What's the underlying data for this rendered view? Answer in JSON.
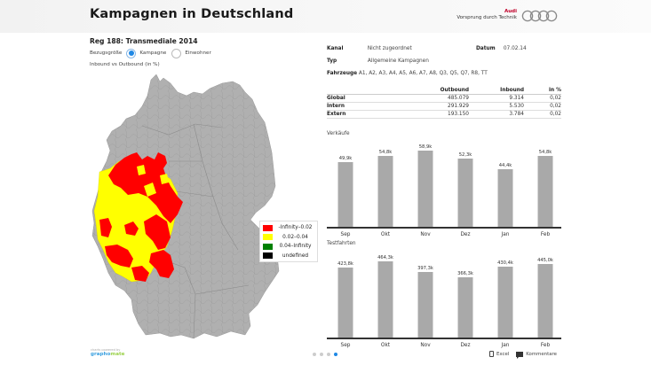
{
  "header": {
    "title": "Kampagnen in Deutschland",
    "brand_name": "Audi",
    "brand_slogan": "Vorsprung durch Technik",
    "logo_icon": "audi-rings-icon"
  },
  "left": {
    "subtitle": "Reg 188: Transmediale 2014",
    "bezug_label": "Bezugsgröße",
    "options": [
      {
        "label": "Kampagne",
        "checked": true
      },
      {
        "label": "Einwohner",
        "checked": false
      }
    ],
    "map_caption": "Inbound vs Outbound (in %)",
    "legend": [
      {
        "label": "-Infinity–0.02",
        "color": "#ff0000"
      },
      {
        "label": "0.02–0.04",
        "color": "#ffff00"
      },
      {
        "label": "0.04–Infinity",
        "color": "#008000"
      },
      {
        "label": "undefined",
        "color": "#000000"
      }
    ],
    "credit_line": "charts powered by",
    "credit_brand_a": "grapho",
    "credit_brand_b": "mate"
  },
  "info": {
    "kanal_label": "Kanal",
    "kanal_value": "Nicht zugeordnet",
    "datum_label": "Datum",
    "datum_value": "07.02.14",
    "typ_label": "Typ",
    "typ_value": "Allgemeine Kampagnen",
    "fahrzeuge_label": "Fahrzeuge",
    "fahrzeuge_value": "A1, A2, A3, A4, A5, A6, A7, A8, Q3, Q5, Q7, R8, TT"
  },
  "table": {
    "columns": [
      "",
      "Outbound",
      "Inbound",
      "in %"
    ],
    "rows": [
      [
        "Global",
        "485.079",
        "9.314",
        "0,02"
      ],
      [
        "Intern",
        "291.929",
        "5.530",
        "0,02"
      ],
      [
        "Extern",
        "193.150",
        "3.784",
        "0,02"
      ]
    ]
  },
  "chart_data": [
    {
      "type": "bar",
      "title": "Verkäufe",
      "categories": [
        "Sep",
        "Okt",
        "Nov",
        "Dez",
        "Jan",
        "Feb"
      ],
      "values": [
        49.9,
        54.8,
        58.9,
        52.3,
        44.4,
        54.8
      ],
      "labels": [
        "49,9k",
        "54,8k",
        "58,9k",
        "52,3k",
        "44,4k",
        "54,8k"
      ],
      "unit": "k",
      "xlabel": "",
      "ylabel": "",
      "grid": false,
      "legend": "none",
      "bar_color": "#a9a9a9"
    },
    {
      "type": "bar",
      "title": "Testfahrten",
      "categories": [
        "Sep",
        "Okt",
        "Nov",
        "Dez",
        "Jan",
        "Feb"
      ],
      "values": [
        423.8,
        464.3,
        397.3,
        366.3,
        430.4,
        445.0
      ],
      "labels": [
        "423,8k",
        "464,3k",
        "397,3k",
        "366,3k",
        "430,4k",
        "445,0k"
      ],
      "unit": "k",
      "xlabel": "",
      "ylabel": "",
      "grid": false,
      "legend": "none",
      "bar_color": "#a9a9a9"
    }
  ],
  "footer": {
    "pages": 4,
    "active_page": 4,
    "excel_label": "Excel",
    "comments_label": "Kommentare"
  }
}
